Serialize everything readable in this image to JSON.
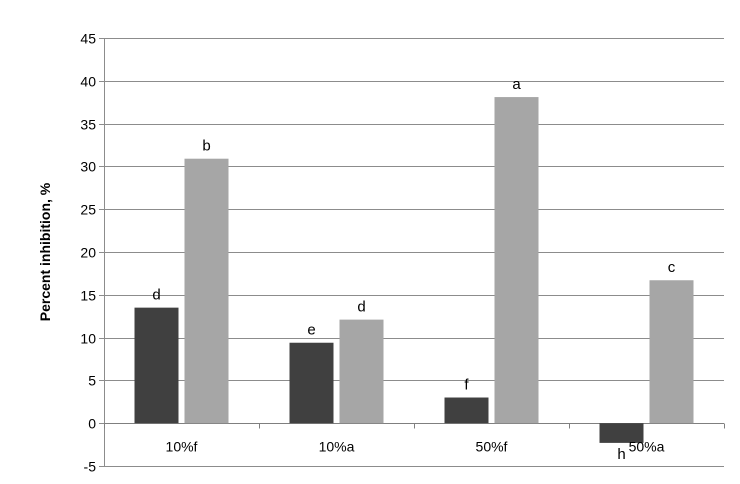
{
  "chart_data": {
    "type": "bar",
    "title": "",
    "xlabel": "",
    "ylabel": "Percent inhibition, %",
    "ylim": [
      -5,
      45
    ],
    "yticks": [
      -5,
      0,
      5,
      10,
      15,
      20,
      25,
      30,
      35,
      40,
      45
    ],
    "ytick_labels": [
      "-5",
      "0",
      "5",
      "10",
      "15",
      "20",
      "25",
      "30",
      "35",
      "40",
      "45"
    ],
    "grid": true,
    "legend": "none",
    "categories": [
      "10%f",
      "10%a",
      "50%f",
      "50%a"
    ],
    "series": [
      {
        "color": "#404040",
        "values": [
          13.5,
          9.4,
          3.0,
          -2.3
        ],
        "labels": [
          "d",
          "e",
          "f",
          "h"
        ]
      },
      {
        "color": "#a6a6a6",
        "values": [
          30.9,
          12.1,
          38.1,
          16.7
        ],
        "labels": [
          "b",
          "d",
          "a",
          "c"
        ]
      }
    ]
  }
}
